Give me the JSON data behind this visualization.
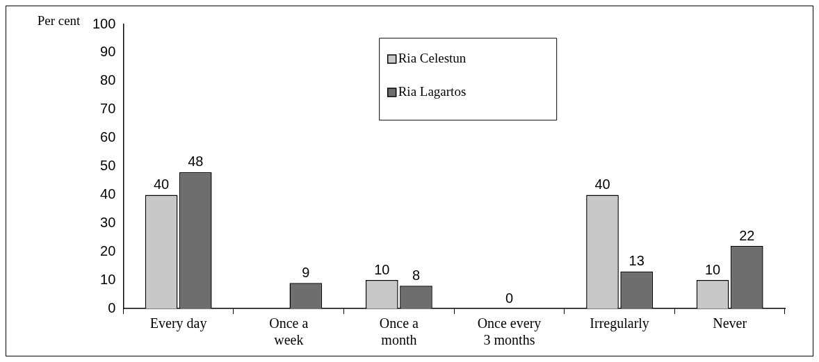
{
  "chart_data": {
    "type": "bar",
    "ylabel": "Per cent",
    "categories": [
      "Every day",
      "Once a week",
      "Once a month",
      "Once every 3 months",
      "Irregularly",
      "Never"
    ],
    "series": [
      {
        "name": "Ria Celestun",
        "color": "#c8c8c8",
        "values": [
          40,
          null,
          10,
          null,
          40,
          10
        ],
        "value_labels": [
          "40",
          null,
          "10",
          null,
          "40",
          "10"
        ]
      },
      {
        "name": "Ria Lagartos",
        "color": "#6e6e6e",
        "values": [
          48,
          9,
          8,
          0,
          13,
          22
        ],
        "value_labels": [
          "48",
          "9",
          "8",
          null,
          "13",
          "22"
        ]
      }
    ],
    "annotations": [
      {
        "text": "0",
        "x": "Once every 3 months",
        "y": 0
      }
    ],
    "ylim": [
      0,
      100
    ],
    "yticks": [
      0,
      10,
      20,
      30,
      40,
      50,
      60,
      70,
      80,
      90,
      100
    ],
    "grid": false,
    "legend": "top"
  }
}
